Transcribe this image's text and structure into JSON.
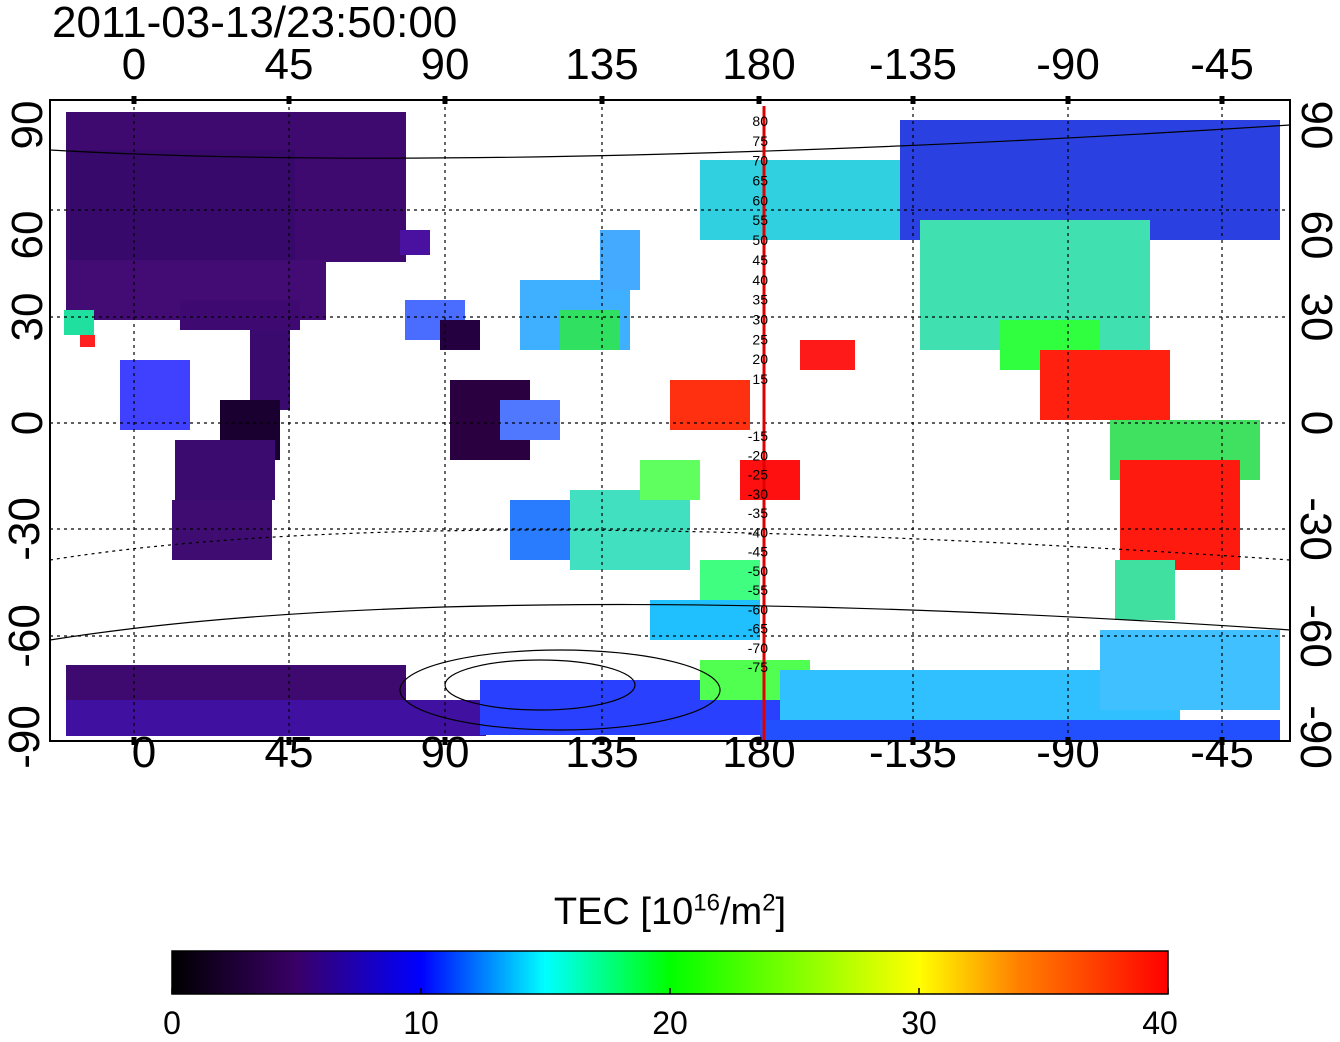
{
  "timestamp": "2011-03-13/23:50:00",
  "map": {
    "top_lon_labels": [
      "0",
      "45",
      "90",
      "135",
      "180",
      "-135",
      "-90",
      "-45"
    ],
    "bottom_lon_labels": [
      "0",
      "45",
      "90",
      "135",
      "180",
      "-135",
      "-90",
      "-45"
    ],
    "left_lat_labels": [
      "90",
      "60",
      "30",
      "0",
      "-30",
      "-60",
      "-90"
    ],
    "right_lat_labels": [
      "90",
      "60",
      "30",
      "0",
      "-30",
      "-60",
      "-90"
    ],
    "meridian_labels": [
      "80",
      "75",
      "70",
      "65",
      "60",
      "55",
      "50",
      "45",
      "40",
      "35",
      "30",
      "25",
      "20",
      "15",
      "-15",
      "-20",
      "-25",
      "-30",
      "-35",
      "-40",
      "-45",
      "-50",
      "-55",
      "-60",
      "-65",
      "-70",
      "-75"
    ],
    "reference_line_color": "#e00000"
  },
  "colorbar": {
    "title_prefix": "TEC  [10",
    "title_exp1": "16",
    "title_mid": "/m",
    "title_exp2": "2",
    "title_suffix": "]",
    "tick_labels": [
      "0",
      "10",
      "20",
      "30",
      "40"
    ],
    "min": 0,
    "max": 40,
    "colors": [
      "#000000",
      "#3a0068",
      "#0000ff",
      "#00ffff",
      "#00ff00",
      "#ffff00",
      "#ff8000",
      "#ff0000"
    ]
  }
}
